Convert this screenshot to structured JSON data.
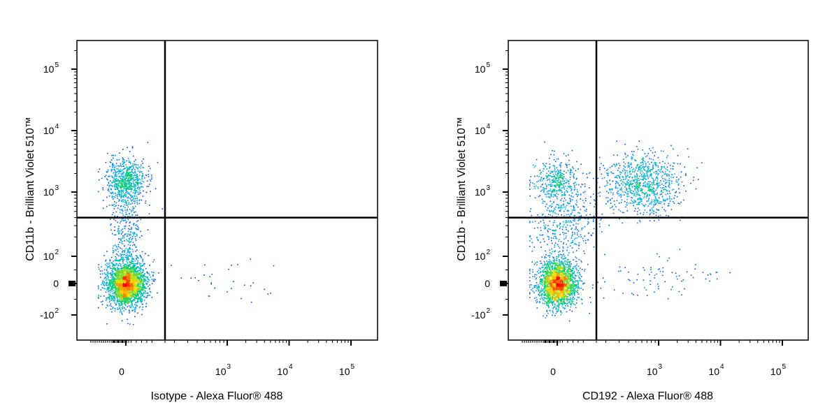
{
  "chart_data": [
    {
      "type": "scatter",
      "panel_id": "left",
      "xlabel": "Isotype - Alexa Fluor® 488",
      "ylabel": "CD11b - Brilliant Violet 510™",
      "x_scale": "biexponential",
      "y_scale": "biexponential",
      "xlim": [
        -2000,
        200000
      ],
      "ylim": [
        -600,
        200000
      ],
      "x_ticks": [
        {
          "value": 0,
          "base": "0",
          "exp": ""
        },
        {
          "value": 1000,
          "base": "10",
          "exp": "3"
        },
        {
          "value": 10000,
          "base": "10",
          "exp": "4"
        },
        {
          "value": 100000,
          "base": "10",
          "exp": "5"
        }
      ],
      "y_ticks": [
        {
          "value": 100000,
          "base": "10",
          "exp": "5"
        },
        {
          "value": 10000,
          "base": "10",
          "exp": "4"
        },
        {
          "value": 1000,
          "base": "10",
          "exp": "3"
        },
        {
          "value": 100,
          "base": "10",
          "exp": "2"
        },
        {
          "value": 0,
          "base": "0",
          "exp": ""
        },
        {
          "value": -100,
          "base": "-10",
          "exp": "2"
        }
      ],
      "quadrant_gate": {
        "x": 150,
        "y": 400
      },
      "populations": [
        {
          "name": "",
          "center": [
            0,
            0
          ],
          "approx_events": 2400
        },
        {
          "name": "",
          "center": [
            0,
            1500
          ],
          "approx_events": 700
        },
        {
          "name": "",
          "center": [
            0,
            200
          ],
          "approx_events": 400
        },
        {
          "name": "",
          "center": [
            1200,
            5
          ],
          "approx_events": 30
        }
      ],
      "grid": false
    },
    {
      "type": "scatter",
      "panel_id": "right",
      "xlabel": "CD192 - Alexa Fluor® 488",
      "ylabel": "CD11b - Brilliant Violet 510™",
      "x_scale": "biexponential",
      "y_scale": "biexponential",
      "xlim": [
        -2000,
        200000
      ],
      "ylim": [
        -600,
        200000
      ],
      "x_ticks": [
        {
          "value": 0,
          "base": "0",
          "exp": ""
        },
        {
          "value": 1000,
          "base": "10",
          "exp": "3"
        },
        {
          "value": 10000,
          "base": "10",
          "exp": "4"
        },
        {
          "value": 100000,
          "base": "10",
          "exp": "5"
        }
      ],
      "y_ticks": [
        {
          "value": 100000,
          "base": "10",
          "exp": "5"
        },
        {
          "value": 10000,
          "base": "10",
          "exp": "4"
        },
        {
          "value": 1000,
          "base": "10",
          "exp": "3"
        },
        {
          "value": 100,
          "base": "10",
          "exp": "2"
        },
        {
          "value": 0,
          "base": "0",
          "exp": ""
        },
        {
          "value": -100,
          "base": "-10",
          "exp": "2"
        }
      ],
      "quadrant_gate": {
        "x": 150,
        "y": 400
      },
      "populations": [
        {
          "name": "",
          "center": [
            0,
            0
          ],
          "approx_events": 2000
        },
        {
          "name": "",
          "center": [
            0,
            1500
          ],
          "approx_events": 350
        },
        {
          "name": "",
          "center": [
            600,
            1400
          ],
          "approx_events": 900
        },
        {
          "name": "",
          "center": [
            20,
            300
          ],
          "approx_events": 500
        },
        {
          "name": "",
          "center": [
            800,
            20
          ],
          "approx_events": 80
        }
      ],
      "grid": false
    }
  ],
  "colors": {
    "axes": "#000000",
    "density_low": "#0000cc",
    "density_mid_low": "#00a8ff",
    "density_mid": "#00d060",
    "density_mid_high": "#f0e000",
    "density_high": "#ff0000"
  }
}
